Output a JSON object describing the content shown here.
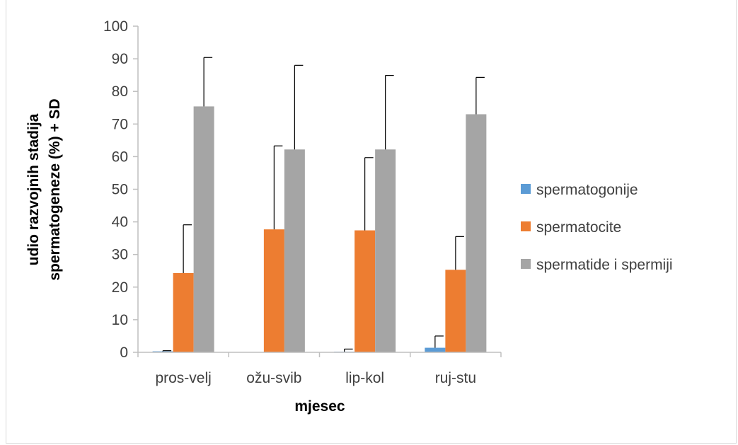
{
  "chart_data": {
    "type": "bar",
    "categories": [
      "pros-velj",
      "ožu-svib",
      "lip-kol",
      "ruj-stu"
    ],
    "series": [
      {
        "name": "spermatogonije",
        "values": [
          0.3,
          0,
          0.2,
          1.4
        ],
        "sd": [
          0.2,
          0,
          0.8,
          3.6
        ],
        "color": "#5b9bd5"
      },
      {
        "name": "spermatocite",
        "values": [
          24.3,
          37.7,
          37.4,
          25.3
        ],
        "sd": [
          14.8,
          25.6,
          22.3,
          10.2
        ],
        "color": "#ed7d31"
      },
      {
        "name": "spermatide i spermiji",
        "values": [
          75.4,
          62.2,
          62.2,
          73.0
        ],
        "sd": [
          15.0,
          25.8,
          22.7,
          11.3
        ],
        "color": "#a5a5a5"
      }
    ],
    "xlabel": "mjesec",
    "ylabel_line1": "udio razvojnih  stadija",
    "ylabel_line2": "spermatogeneze  (%) + SD",
    "ylim": [
      0,
      100
    ],
    "yticks": [
      "0",
      "10",
      "20",
      "30",
      "40",
      "50",
      "60",
      "70",
      "80",
      "90",
      "100"
    ],
    "legend_position": "right",
    "grid": false
  }
}
